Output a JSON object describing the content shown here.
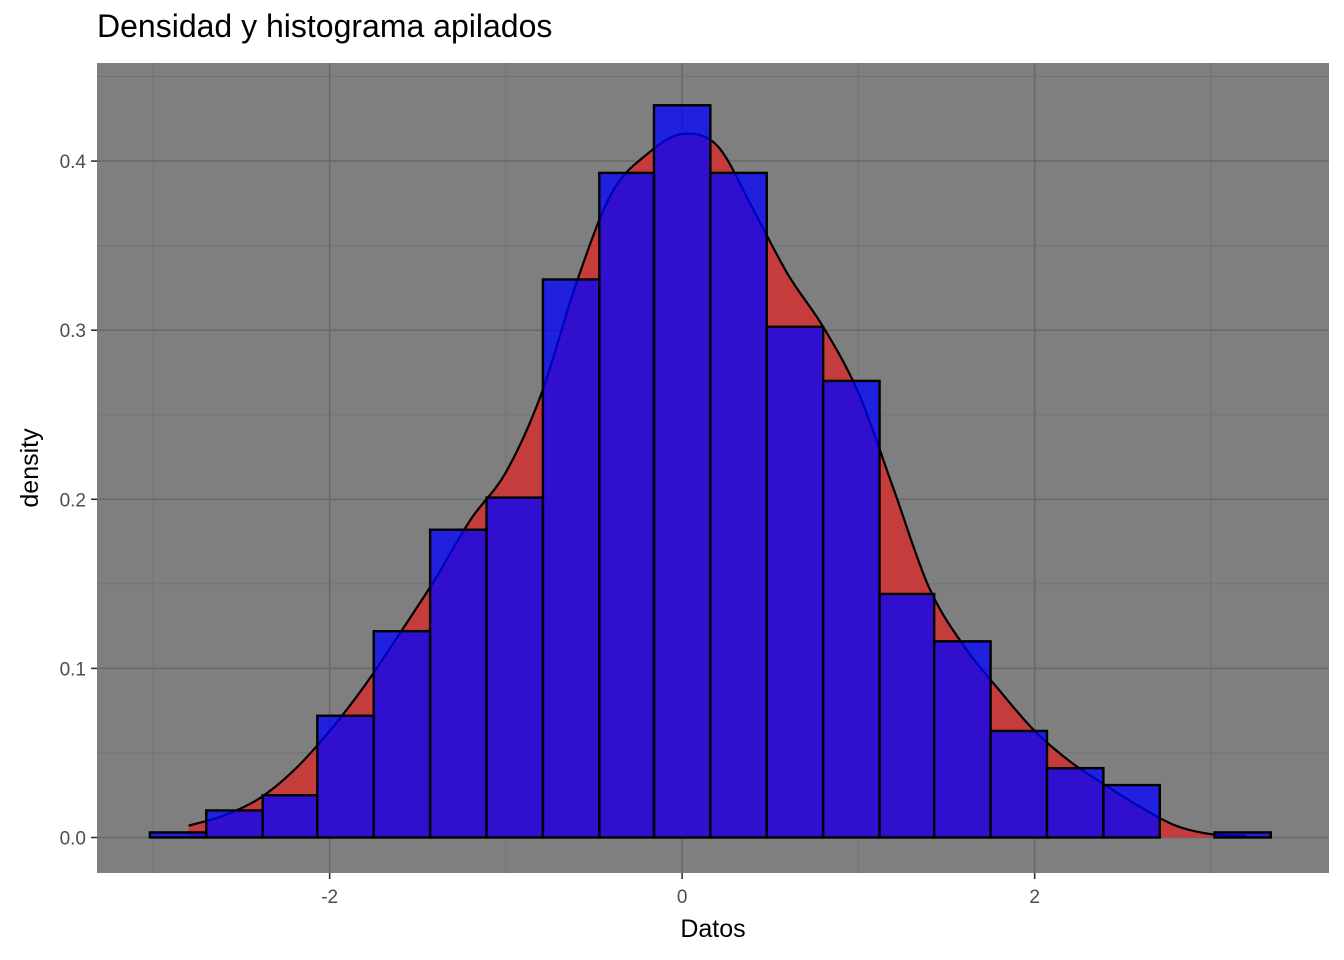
{
  "title": "Densidad y histograma apilados",
  "colors": {
    "panel_bg": "#7f7f7f",
    "grid_major": "#696969",
    "grid_minor": "#737373",
    "density_fill": "#c43c3c",
    "hist_fill": "#0000ff",
    "hist_alpha": 0.75,
    "outline": "#000000"
  },
  "chart_data": {
    "type": "bar",
    "title": "Densidad y histograma apilados",
    "xlabel": "Datos",
    "ylabel": "density",
    "xlim": [
      -3.32,
      3.67
    ],
    "ylim": [
      -0.021,
      0.458
    ],
    "x_ticks": [
      -2,
      0,
      2
    ],
    "x_tick_labels": [
      "-2",
      "0",
      "2"
    ],
    "y_ticks": [
      0.0,
      0.1,
      0.2,
      0.3,
      0.4
    ],
    "y_tick_labels": [
      "0.0",
      "0.1",
      "0.2",
      "0.3",
      "0.4"
    ],
    "grid": true,
    "legend": "none",
    "histogram": {
      "bin_edges": [
        -3.02,
        -2.7,
        -2.38,
        -2.07,
        -1.75,
        -1.43,
        -1.11,
        -0.79,
        -0.47,
        -0.16,
        0.16,
        0.48,
        0.8,
        1.12,
        1.43,
        1.75,
        2.07,
        2.39,
        2.71,
        3.02,
        3.34
      ],
      "values": [
        0.003,
        0.016,
        0.025,
        0.072,
        0.122,
        0.182,
        0.201,
        0.33,
        0.393,
        0.433,
        0.393,
        0.302,
        0.27,
        0.144,
        0.116,
        0.063,
        0.041,
        0.031,
        0.0,
        0.003
      ]
    },
    "density": {
      "x": [
        -2.8,
        -2.6,
        -2.4,
        -2.2,
        -2.0,
        -1.8,
        -1.6,
        -1.4,
        -1.2,
        -1.0,
        -0.8,
        -0.6,
        -0.4,
        -0.2,
        0.0,
        0.2,
        0.4,
        0.6,
        0.8,
        1.0,
        1.2,
        1.4,
        1.6,
        1.8,
        2.0,
        2.2,
        2.4,
        2.6,
        2.8,
        3.0,
        3.2
      ],
      "y": [
        0.007,
        0.013,
        0.023,
        0.04,
        0.063,
        0.09,
        0.121,
        0.153,
        0.188,
        0.216,
        0.262,
        0.328,
        0.381,
        0.404,
        0.416,
        0.409,
        0.372,
        0.333,
        0.302,
        0.263,
        0.206,
        0.148,
        0.113,
        0.087,
        0.063,
        0.045,
        0.031,
        0.018,
        0.007,
        0.002,
        0.001
      ]
    }
  }
}
